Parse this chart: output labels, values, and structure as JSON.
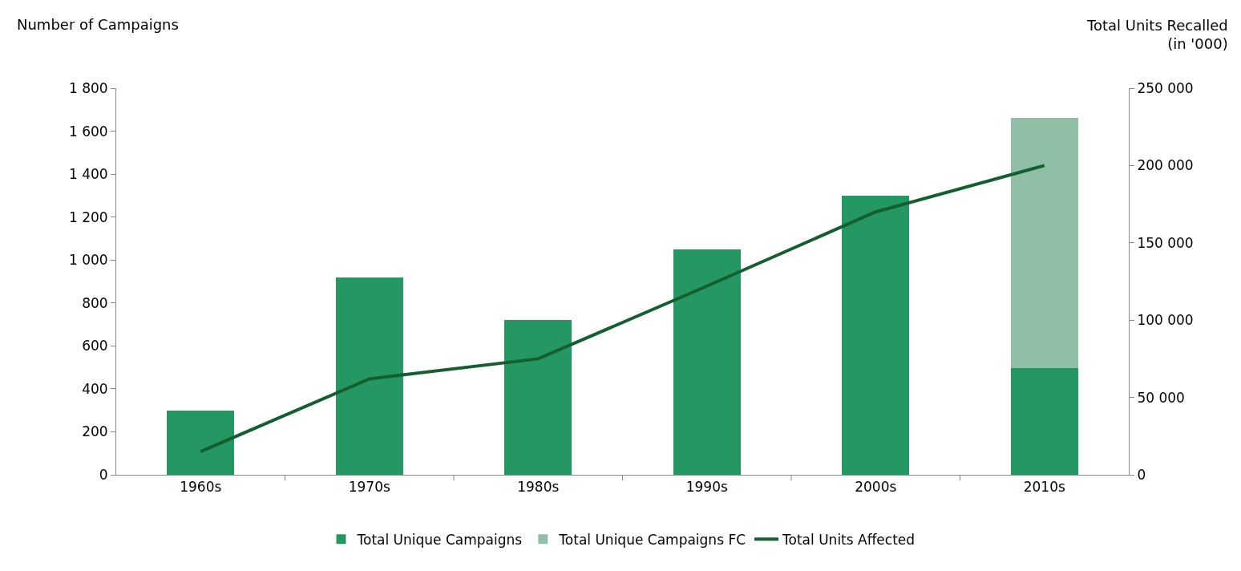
{
  "chart_data": {
    "type": "bar",
    "stacked": true,
    "ylabel": "Number of Campaigns",
    "y2label": "Total Units Recalled\n(in '000)",
    "categories": [
      "1960s",
      "1970s",
      "1980s",
      "1990s",
      "2000s",
      "2010s"
    ],
    "series": [
      {
        "name": "Total Unique Campaigns",
        "color": "#259763",
        "values": [
          300,
          920,
          720,
          1050,
          1300,
          495
        ]
      },
      {
        "name": "Total Unique Campaigns FC",
        "color": "#8fbfa6",
        "values": [
          null,
          null,
          null,
          null,
          null,
          1165
        ]
      },
      {
        "name": "Total Units Affected",
        "type": "line",
        "axis": "y2",
        "color": "#145f30",
        "values": [
          15000,
          62000,
          75000,
          122000,
          170000,
          200000
        ]
      }
    ],
    "ylim": [
      0,
      1800
    ],
    "yticks": [
      0,
      {
        "value": 200,
        "label": "200"
      },
      {
        "value": 400,
        "label": "400"
      },
      {
        "value": 600,
        "label": "600"
      },
      {
        "value": 800,
        "label": "800"
      },
      {
        "value": 1000,
        "label": "1 000"
      },
      {
        "value": 1200,
        "label": "1 200"
      },
      {
        "value": 1400,
        "label": "1 400"
      },
      {
        "value": 1600,
        "label": "1 600"
      },
      {
        "value": 1800,
        "label": "1 800"
      }
    ],
    "y2lim": [
      0,
      250000
    ],
    "y2ticks": [
      0,
      {
        "value": 50000,
        "label": "50 000"
      },
      {
        "value": 100000,
        "label": "100 000"
      },
      {
        "value": 150000,
        "label": "150 000"
      },
      {
        "value": 200000,
        "label": "200 000"
      },
      {
        "value": 250000,
        "label": "250 000"
      }
    ],
    "legend": "bottom"
  }
}
